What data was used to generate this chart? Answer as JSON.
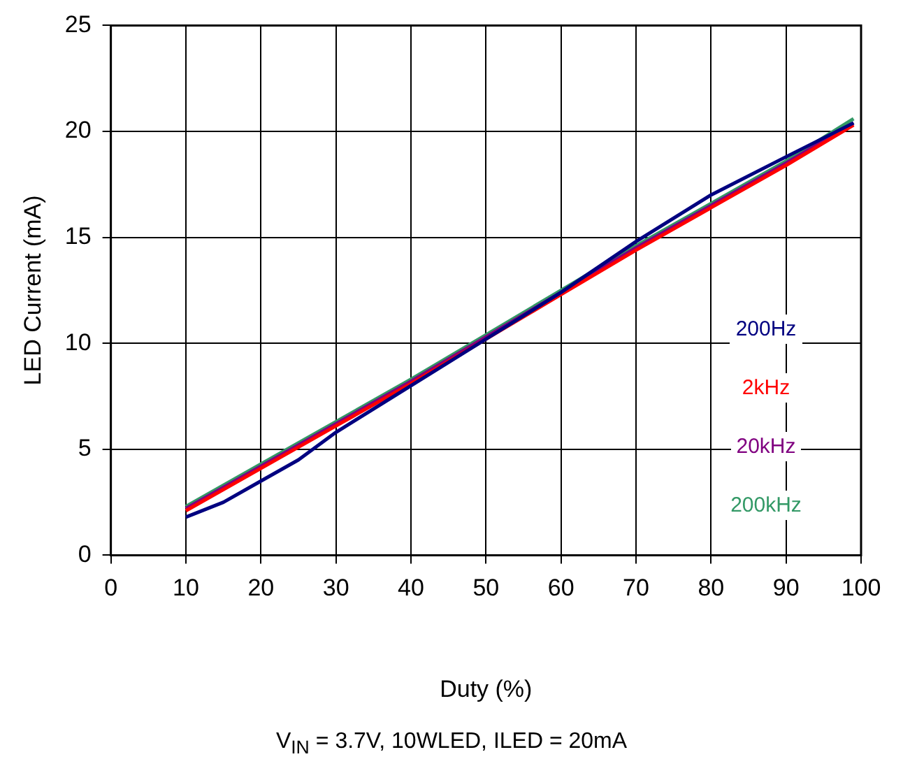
{
  "chart_data": {
    "type": "line",
    "xlabel": "Duty (%)",
    "ylabel": "LED Current (mA)",
    "x": [
      10,
      20,
      30,
      40,
      50,
      60,
      70,
      80,
      90,
      99
    ],
    "series": [
      {
        "name": "200Hz",
        "color": "#000080",
        "x": [
          10,
          15,
          20,
          25,
          30,
          40,
          50,
          60,
          70,
          80,
          90,
          99
        ],
        "values": [
          1.8,
          2.5,
          3.5,
          4.5,
          5.8,
          8.0,
          10.2,
          12.4,
          14.8,
          17.0,
          18.8,
          20.4
        ]
      },
      {
        "name": "2kHz",
        "color": "#ff0000",
        "values": [
          2.1,
          4.1,
          6.1,
          8.1,
          10.2,
          12.3,
          14.4,
          16.4,
          18.4,
          20.3
        ]
      },
      {
        "name": "20kHz",
        "color": "#800080",
        "values": [
          2.2,
          4.2,
          6.2,
          8.2,
          10.3,
          12.4,
          14.5,
          16.5,
          18.5,
          20.4
        ]
      },
      {
        "name": "200kHz",
        "color": "#339966",
        "values": [
          2.3,
          4.3,
          6.3,
          8.3,
          10.4,
          12.5,
          14.6,
          16.6,
          18.6,
          20.6
        ]
      }
    ],
    "xlim": [
      0,
      100
    ],
    "xticks": [
      0,
      10,
      20,
      30,
      40,
      50,
      60,
      70,
      80,
      90,
      100
    ],
    "ylim": [
      0,
      25
    ],
    "yticks": [
      0,
      5,
      10,
      15,
      20,
      25
    ],
    "grid": true,
    "legend": "right",
    "marker": "none",
    "line_style": "solid",
    "annotations": [
      "V$_{IN}$ = 3.7V, 10WLED, ILED = 20mA"
    ]
  }
}
